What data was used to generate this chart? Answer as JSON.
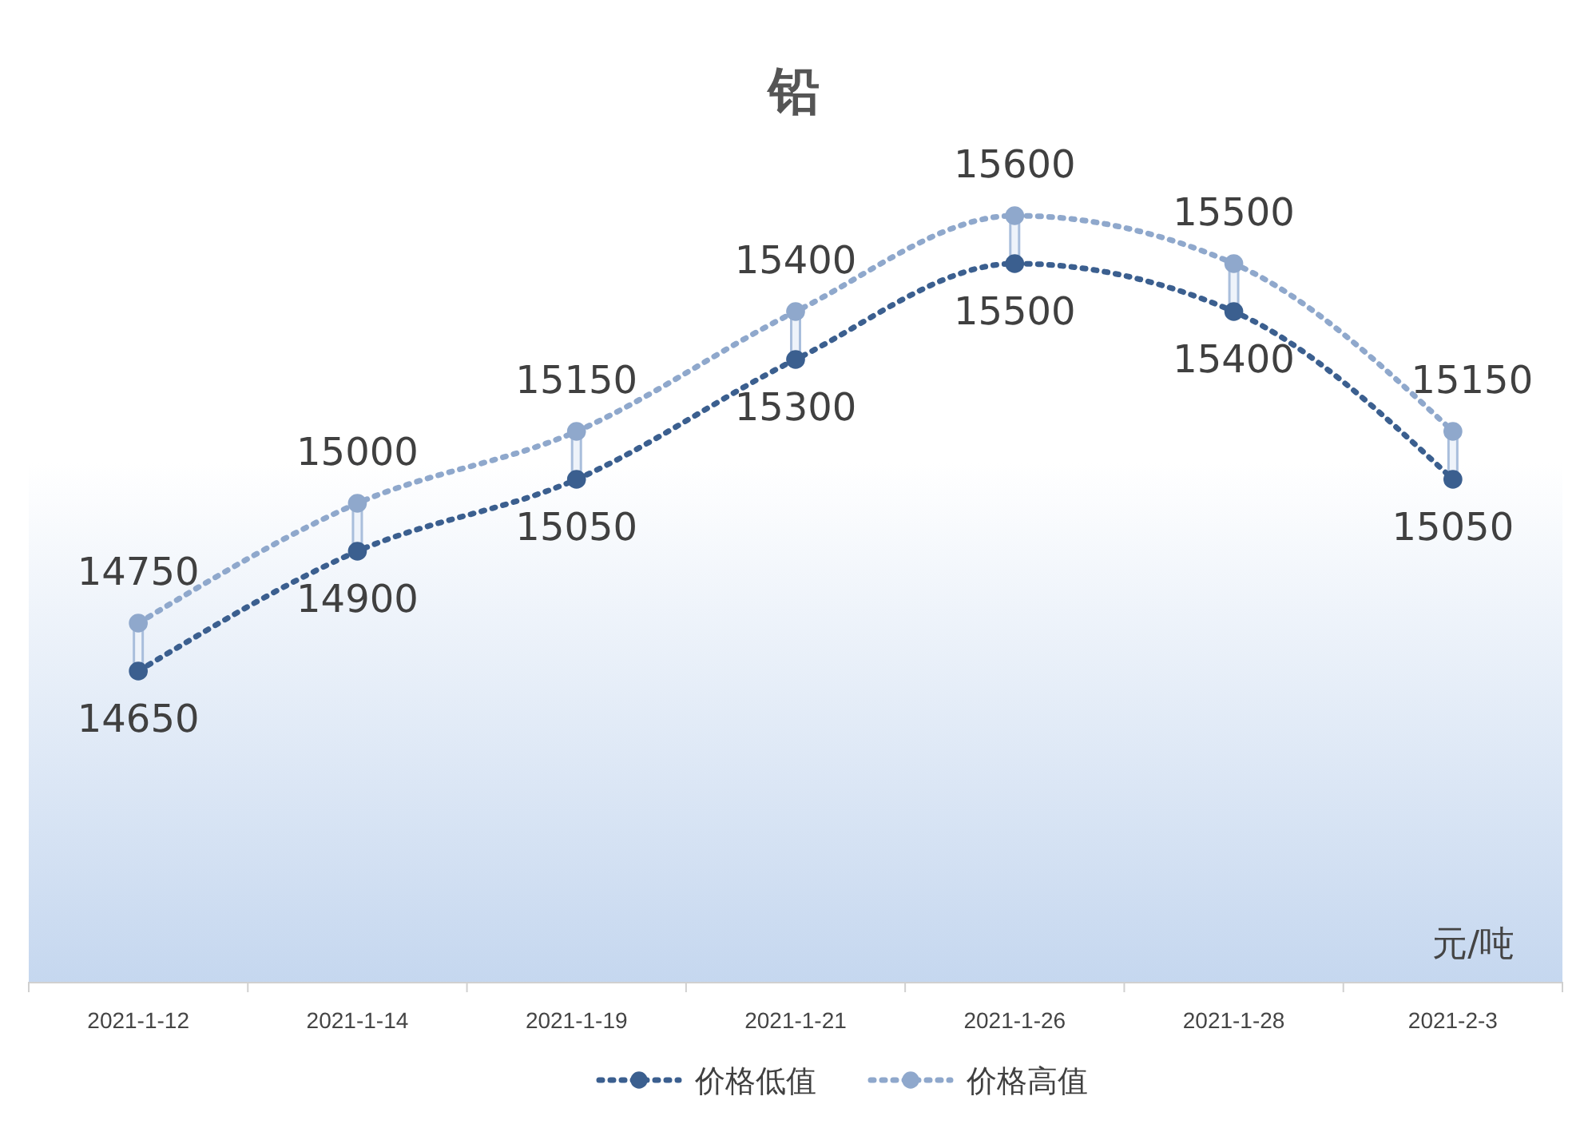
{
  "chart_data": {
    "type": "line",
    "title": "铅",
    "categories": [
      "2021-1-12",
      "2021-1-14",
      "2021-1-19",
      "2021-1-21",
      "2021-1-26",
      "2021-1-28",
      "2021-2-3"
    ],
    "series": [
      {
        "name": "价格低值",
        "color": "#3b5f8f",
        "values": [
          14650,
          14900,
          15050,
          15300,
          15500,
          15400,
          15050
        ]
      },
      {
        "name": "价格高值",
        "color": "#8fa8cc",
        "values": [
          14750,
          15000,
          15150,
          15400,
          15600,
          15500,
          15150
        ]
      }
    ],
    "tick_labels": "x",
    "data_labels": true,
    "marker": "circle",
    "line_style": "dotted",
    "legend": "bottom",
    "grid": false,
    "annotations": [
      "元/吨"
    ]
  }
}
